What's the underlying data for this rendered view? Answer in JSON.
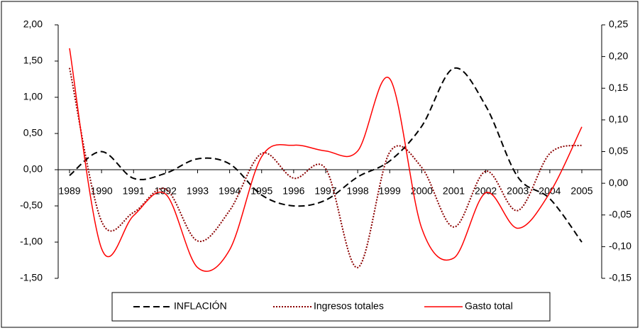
{
  "chart_data": {
    "type": "line",
    "categories": [
      "1989",
      "1990",
      "1991",
      "1992",
      "1993",
      "1994",
      "1995",
      "1996",
      "1997",
      "1998",
      "1999",
      "2000",
      "2001",
      "2002",
      "2003",
      "2004",
      "2005"
    ],
    "series": [
      {
        "name": "INFLACIÓN",
        "color": "#000000",
        "style": "dashed",
        "axis": "y",
        "values": [
          -0.08,
          0.25,
          -0.12,
          -0.05,
          0.15,
          0.08,
          -0.35,
          -0.5,
          -0.42,
          -0.1,
          0.12,
          0.6,
          1.4,
          0.88,
          -0.1,
          -0.4,
          -1.0
        ]
      },
      {
        "name": "Ingresos totales",
        "color": "#8b0000",
        "style": "dotted",
        "axis": "y2",
        "values": [
          0.182,
          -0.06,
          -0.046,
          -0.009,
          -0.091,
          -0.043,
          0.047,
          0.008,
          0.023,
          -0.133,
          0.049,
          0.025,
          -0.069,
          0.019,
          -0.043,
          0.047,
          0.06
        ]
      },
      {
        "name": "Gasto total",
        "color": "#ff0000",
        "style": "solid",
        "axis": "y2",
        "values": [
          0.213,
          -0.103,
          -0.051,
          -0.017,
          -0.133,
          -0.105,
          0.042,
          0.06,
          0.051,
          0.051,
          0.165,
          -0.071,
          -0.118,
          -0.015,
          -0.071,
          -0.015,
          0.089
        ]
      }
    ],
    "ylim": [
      -1.5,
      2.0
    ],
    "yticks": [
      {
        "value": -1.5,
        "label": "-1,50"
      },
      {
        "value": -1.0,
        "label": "-1,00"
      },
      {
        "value": -0.5,
        "label": "-0,50"
      },
      {
        "value": 0,
        "label": "0,00"
      },
      {
        "value": 0.5,
        "label": "0,50"
      },
      {
        "value": 1.0,
        "label": "1,00"
      },
      {
        "value": 1.5,
        "label": "1,50"
      },
      {
        "value": 2.0,
        "label": "2,00"
      }
    ],
    "y2lim": [
      -0.15,
      0.25
    ],
    "y2ticks": [
      {
        "value": -0.15,
        "label": "-0,15"
      },
      {
        "value": -0.1,
        "label": "-0,10"
      },
      {
        "value": -0.05,
        "label": "-0,05"
      },
      {
        "value": 0,
        "label": "0,00"
      },
      {
        "value": 0.05,
        "label": "0,05"
      },
      {
        "value": 0.1,
        "label": "0,10"
      },
      {
        "value": 0.15,
        "label": "0,15"
      },
      {
        "value": 0.2,
        "label": "0,20"
      },
      {
        "value": 0.25,
        "label": "0,25"
      }
    ],
    "grid": false,
    "legend": "bottom"
  }
}
